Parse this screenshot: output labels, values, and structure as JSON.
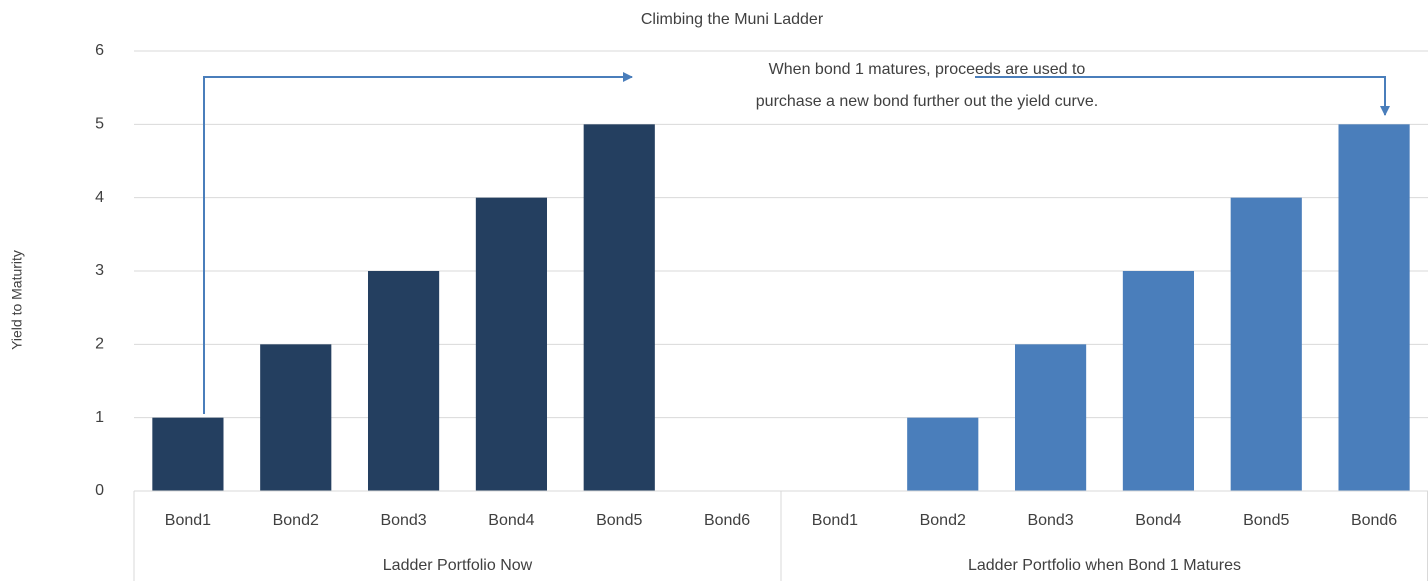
{
  "chart_data": {
    "type": "bar",
    "title": "Climbing the Muni Ladder",
    "ylabel": "Yield to Maturity",
    "groups": [
      {
        "name": "Ladder Portfolio Now",
        "color": "#243f60",
        "categories": [
          "Bond1",
          "Bond2",
          "Bond3",
          "Bond4",
          "Bond5",
          "Bond6"
        ],
        "values": [
          1,
          2,
          3,
          4,
          5,
          null
        ]
      },
      {
        "name": "Ladder Portfolio when Bond 1 Matures",
        "color": "#4a7ebb",
        "categories": [
          "Bond1",
          "Bond2",
          "Bond3",
          "Bond4",
          "Bond5",
          "Bond6"
        ],
        "values": [
          null,
          1,
          2,
          3,
          4,
          5
        ]
      }
    ],
    "annotation": [
      "When bond 1 matures, proceeds are used to",
      "purchase a new bond further out the yield curve."
    ],
    "ylim": [
      0,
      6
    ],
    "yticks": [
      0,
      1,
      2,
      3,
      4,
      5,
      6
    ],
    "grid": true
  }
}
